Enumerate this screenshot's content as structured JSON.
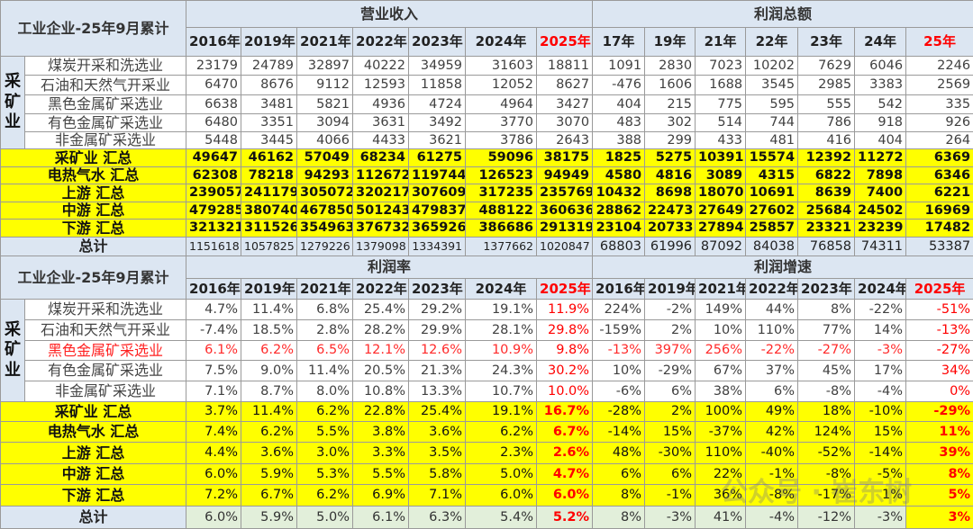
{
  "title": "工业企业-25年9月累计",
  "side_label": "采矿业",
  "top": {
    "group1": "营业收入",
    "group2": "利润总额",
    "years1": [
      "2016年",
      "2019年",
      "2021年",
      "2022年",
      "2023年",
      "2024年",
      "2025年"
    ],
    "years2": [
      "17年",
      "19年",
      "21年",
      "22年",
      "23年",
      "24年",
      "25年"
    ],
    "mining_rows": [
      {
        "name": "煤炭开采和洗选业",
        "v": [
          "23179",
          "24789",
          "32897",
          "40222",
          "34959",
          "31603",
          "18811",
          "1091",
          "2830",
          "7023",
          "10202",
          "7629",
          "6046",
          "2246"
        ]
      },
      {
        "name": "石油和天然气开采业",
        "v": [
          "6470",
          "8676",
          "9112",
          "12593",
          "11858",
          "12052",
          "8627",
          "-476",
          "1606",
          "1688",
          "3545",
          "2985",
          "3383",
          "2569"
        ]
      },
      {
        "name": "黑色金属矿采选业",
        "v": [
          "6638",
          "3481",
          "5821",
          "4936",
          "4724",
          "4964",
          "3427",
          "404",
          "215",
          "775",
          "595",
          "555",
          "542",
          "335"
        ]
      },
      {
        "name": "有色金属矿采选业",
        "v": [
          "6480",
          "3351",
          "3094",
          "3631",
          "3492",
          "3770",
          "3070",
          "483",
          "302",
          "514",
          "744",
          "786",
          "918",
          "926"
        ]
      },
      {
        "name": "非金属矿采选业",
        "v": [
          "5448",
          "3445",
          "4066",
          "4433",
          "3621",
          "3786",
          "2643",
          "388",
          "299",
          "433",
          "481",
          "416",
          "404",
          "264"
        ]
      }
    ],
    "sum_rows": [
      {
        "name": "采矿业 汇总",
        "v": [
          "49647",
          "46162",
          "57049",
          "68234",
          "61275",
          "59096",
          "38175",
          "1825",
          "5275",
          "10391",
          "15574",
          "12392",
          "11272",
          "6369"
        ]
      },
      {
        "name": "电热气水 汇总",
        "v": [
          "62308",
          "78218",
          "94293",
          "112672",
          "119744",
          "126523",
          "94949",
          "4580",
          "4816",
          "3089",
          "4315",
          "6822",
          "7898",
          "6346"
        ]
      },
      {
        "name": "上游 汇总",
        "v": [
          "239057",
          "241179",
          "305072",
          "320217",
          "307609",
          "317235",
          "235769",
          "10432",
          "8698",
          "18070",
          "10691",
          "8639",
          "7400",
          "6221"
        ]
      },
      {
        "name": "中游 汇总",
        "v": [
          "479285",
          "380740",
          "467850",
          "501243",
          "479837",
          "488122",
          "360636",
          "28862",
          "22473",
          "27649",
          "27602",
          "25684",
          "24502",
          "16969"
        ]
      },
      {
        "name": "下游 汇总",
        "v": [
          "321321",
          "311526",
          "354963",
          "376732",
          "365926",
          "386686",
          "291319",
          "23104",
          "20733",
          "27894",
          "25857",
          "23321",
          "23239",
          "17482"
        ]
      }
    ],
    "total": {
      "name": "总计",
      "v": [
        "1151618",
        "1057825",
        "1279226",
        "1379098",
        "1334391",
        "1377662",
        "1020847",
        "68803",
        "61996",
        "87092",
        "84038",
        "76858",
        "74311",
        "53387"
      ]
    }
  },
  "bottom": {
    "group1": "利润率",
    "group2": "利润增速",
    "years1": [
      "2016年",
      "2019年",
      "2021年",
      "2022年",
      "2023年",
      "2024年",
      "2025年"
    ],
    "years2": [
      "2016年",
      "2019年",
      "2021年",
      "2022年",
      "2023年",
      "2024年",
      "2025年"
    ],
    "mining_rows": [
      {
        "name": "煤炭开采和洗选业",
        "v": [
          "4.7%",
          "11.4%",
          "6.8%",
          "25.4%",
          "29.2%",
          "19.1%",
          "11.9%",
          "224%",
          "-2%",
          "149%",
          "44%",
          "8%",
          "-22%",
          "-51%"
        ]
      },
      {
        "name": "石油和天然气开采业",
        "v": [
          "-7.4%",
          "18.5%",
          "2.8%",
          "28.2%",
          "29.9%",
          "28.1%",
          "29.8%",
          "-159%",
          "2%",
          "10%",
          "110%",
          "77%",
          "14%",
          "-13%"
        ]
      },
      {
        "name": "黑色金属矿采选业",
        "v": [
          "6.1%",
          "6.2%",
          "6.5%",
          "12.1%",
          "12.6%",
          "10.9%",
          "9.8%",
          "-13%",
          "397%",
          "256%",
          "-22%",
          "-27%",
          "-3%",
          "-27%"
        ]
      },
      {
        "name": "有色金属矿采选业",
        "v": [
          "7.5%",
          "9.0%",
          "11.4%",
          "20.5%",
          "21.3%",
          "24.3%",
          "30.2%",
          "10%",
          "-29%",
          "67%",
          "37%",
          "45%",
          "17%",
          "34%"
        ]
      },
      {
        "name": "非金属矿采选业",
        "v": [
          "7.1%",
          "8.7%",
          "8.0%",
          "10.8%",
          "13.3%",
          "10.7%",
          "10.0%",
          "-6%",
          "6%",
          "38%",
          "6%",
          "-8%",
          "-4%",
          "0%"
        ]
      }
    ],
    "sum_rows": [
      {
        "name": "采矿业 汇总",
        "v": [
          "3.7%",
          "11.4%",
          "6.2%",
          "22.8%",
          "25.4%",
          "19.1%",
          "16.7%",
          "-28%",
          "2%",
          "100%",
          "49%",
          "18%",
          "-10%",
          "-29%"
        ]
      },
      {
        "name": "电热气水 汇总",
        "v": [
          "7.4%",
          "6.2%",
          "5.5%",
          "3.8%",
          "3.6%",
          "6.2%",
          "6.7%",
          "-14%",
          "15%",
          "-37%",
          "42%",
          "124%",
          "15%",
          "11%"
        ]
      },
      {
        "name": "上游 汇总",
        "v": [
          "4.4%",
          "3.6%",
          "3.0%",
          "3.3%",
          "3.5%",
          "2.3%",
          "2.6%",
          "48%",
          "-30%",
          "110%",
          "-40%",
          "-52%",
          "-14%",
          "39%"
        ]
      },
      {
        "name": "中游 汇总",
        "v": [
          "6.0%",
          "5.9%",
          "5.3%",
          "5.5%",
          "5.8%",
          "5.0%",
          "4.7%",
          "6%",
          "6%",
          "22%",
          "-1%",
          "-8%",
          "-5%",
          "8%"
        ]
      },
      {
        "name": "下游 汇总",
        "v": [
          "7.2%",
          "6.7%",
          "6.2%",
          "6.9%",
          "7.1%",
          "6.0%",
          "6.0%",
          "8%",
          "-1%",
          "36%",
          "-8%",
          "-17%",
          "1%",
          "5%"
        ]
      }
    ],
    "total": {
      "name": "总计",
      "v": [
        "6.0%",
        "5.9%",
        "5.0%",
        "6.1%",
        "6.3%",
        "5.4%",
        "5.2%",
        "8%",
        "-3%",
        "41%",
        "-4%",
        "-12%",
        "-3%",
        "3%"
      ]
    }
  },
  "watermark": "公众号 · 崔东树",
  "colors": {
    "header": "#dce6f2",
    "highlight": "#ffff00",
    "accent_red": "#ff0000",
    "total_green": "#e2efda"
  }
}
